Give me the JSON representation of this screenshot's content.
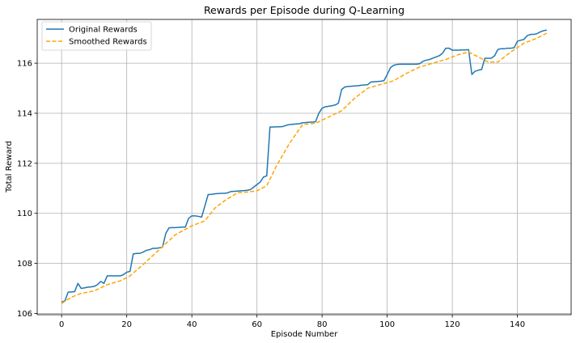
{
  "chart_data": {
    "type": "line",
    "title": "Rewards per Episode during Q-Learning",
    "xlabel": "Episode Number",
    "ylabel": "Total Reward",
    "xlim": [
      -7.5,
      156.5
    ],
    "ylim": [
      105.95,
      117.75
    ],
    "xticks": [
      0,
      20,
      40,
      60,
      80,
      100,
      120,
      140
    ],
    "yticks": [
      106,
      108,
      110,
      112,
      114,
      116
    ],
    "grid": true,
    "legend_position": "top-left",
    "series": [
      {
        "name": "Original Rewards",
        "color": "#1f77b4",
        "style": "solid",
        "x": [
          0,
          1,
          2,
          3,
          4,
          5,
          6,
          7,
          8,
          9,
          10,
          11,
          12,
          13,
          14,
          15,
          16,
          17,
          18,
          19,
          20,
          21,
          22,
          23,
          24,
          25,
          26,
          27,
          28,
          29,
          30,
          31,
          32,
          33,
          34,
          35,
          36,
          37,
          38,
          39,
          40,
          41,
          42,
          43,
          44,
          45,
          46,
          47,
          48,
          49,
          50,
          51,
          52,
          53,
          54,
          55,
          56,
          57,
          58,
          59,
          60,
          61,
          62,
          63,
          64,
          65,
          66,
          67,
          68,
          69,
          70,
          71,
          72,
          73,
          74,
          75,
          76,
          77,
          78,
          79,
          80,
          81,
          82,
          83,
          84,
          85,
          86,
          87,
          88,
          89,
          90,
          91,
          92,
          93,
          94,
          95,
          96,
          97,
          98,
          99,
          100,
          101,
          102,
          103,
          104,
          105,
          106,
          107,
          108,
          109,
          110,
          111,
          112,
          113,
          114,
          115,
          116,
          117,
          118,
          119,
          120,
          121,
          122,
          123,
          124,
          125,
          126,
          127,
          128,
          129,
          130,
          131,
          132,
          133,
          134,
          135,
          136,
          137,
          138,
          139,
          140,
          141,
          142,
          143,
          144,
          145,
          146,
          147,
          148,
          149
        ],
        "y": [
          106.45,
          106.5,
          106.85,
          106.86,
          106.87,
          107.2,
          107.0,
          107.02,
          107.05,
          107.06,
          107.08,
          107.15,
          107.28,
          107.2,
          107.5,
          107.5,
          107.5,
          107.5,
          107.5,
          107.55,
          107.65,
          107.68,
          108.38,
          108.4,
          108.4,
          108.45,
          108.52,
          108.55,
          108.6,
          108.6,
          108.62,
          108.65,
          109.2,
          109.42,
          109.43,
          109.43,
          109.44,
          109.45,
          109.45,
          109.8,
          109.9,
          109.9,
          109.88,
          109.85,
          110.3,
          110.75,
          110.76,
          110.78,
          110.79,
          110.8,
          110.8,
          110.82,
          110.87,
          110.88,
          110.89,
          110.9,
          110.91,
          110.92,
          110.95,
          111.05,
          111.15,
          111.25,
          111.45,
          111.5,
          113.45,
          113.45,
          113.46,
          113.46,
          113.47,
          113.52,
          113.55,
          113.56,
          113.57,
          113.58,
          113.62,
          113.63,
          113.64,
          113.65,
          113.66,
          114.0,
          114.2,
          114.26,
          114.28,
          114.3,
          114.33,
          114.4,
          114.95,
          115.05,
          115.07,
          115.08,
          115.09,
          115.1,
          115.12,
          115.13,
          115.14,
          115.25,
          115.26,
          115.27,
          115.28,
          115.3,
          115.55,
          115.82,
          115.92,
          115.95,
          115.96,
          115.96,
          115.96,
          115.96,
          115.96,
          115.96,
          115.98,
          116.08,
          116.12,
          116.15,
          116.2,
          116.25,
          116.3,
          116.4,
          116.6,
          116.6,
          116.52,
          116.52,
          116.52,
          116.53,
          116.53,
          116.54,
          115.55,
          115.68,
          115.72,
          115.75,
          116.2,
          116.2,
          116.2,
          116.3,
          116.55,
          116.58,
          116.58,
          116.6,
          116.6,
          116.62,
          116.88,
          116.92,
          116.95,
          117.1,
          117.15,
          117.15,
          117.18,
          117.25,
          117.3,
          117.32
        ]
      },
      {
        "name": "Smoothed Rewards",
        "color": "#ffa500",
        "style": "dashed",
        "x": [
          0,
          3,
          6,
          10,
          14,
          18,
          21,
          25,
          30,
          35,
          40,
          44,
          47,
          50,
          54,
          57,
          60,
          63,
          66,
          70,
          74,
          78,
          82,
          86,
          90,
          94,
          98,
          102,
          106,
          110,
          114,
          118,
          122,
          125,
          128,
          131,
          134,
          138,
          142,
          146,
          149
        ],
        "y": [
          106.4,
          106.65,
          106.8,
          106.9,
          107.15,
          107.3,
          107.5,
          107.95,
          108.55,
          109.15,
          109.5,
          109.7,
          110.2,
          110.5,
          110.82,
          110.85,
          110.9,
          111.1,
          111.9,
          112.8,
          113.55,
          113.6,
          113.85,
          114.1,
          114.6,
          115.0,
          115.15,
          115.3,
          115.6,
          115.85,
          116.0,
          116.15,
          116.35,
          116.45,
          116.25,
          116.05,
          116.05,
          116.45,
          116.8,
          117.0,
          117.2
        ]
      }
    ]
  }
}
